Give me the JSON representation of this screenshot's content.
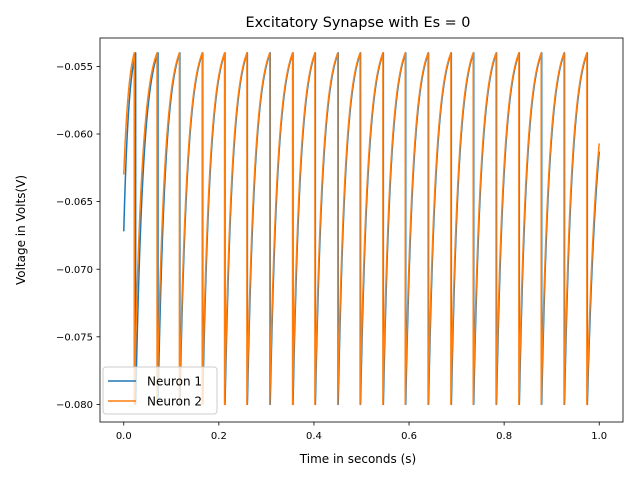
{
  "chart_data": {
    "type": "line",
    "title": "Excitatory Synapse with Es = 0",
    "xlabel": "Time in seconds (s)",
    "ylabel": "Voltage in Volts(V)",
    "xlim": [
      -0.05,
      1.05
    ],
    "ylim": [
      -0.0813,
      -0.0529
    ],
    "x_ticks": [
      0.0,
      0.2,
      0.4,
      0.6,
      0.8,
      1.0
    ],
    "x_tick_labels": [
      "0.0",
      "0.2",
      "0.4",
      "0.6",
      "0.8",
      "1.0"
    ],
    "y_ticks": [
      -0.08,
      -0.075,
      -0.07,
      -0.065,
      -0.06,
      -0.055
    ],
    "y_tick_labels": [
      "−0.080",
      "−0.075",
      "−0.070",
      "−0.065",
      "−0.060",
      "−0.055"
    ],
    "grid": false,
    "legend": {
      "position": "lower-left",
      "entries": [
        "Neuron 1",
        "Neuron 2"
      ]
    },
    "series": [
      {
        "name": "Neuron 1",
        "color": "#1f77b4",
        "v_start": -0.0672,
        "v_threshold": -0.054,
        "v_reset": -0.08,
        "v_end": -0.0613,
        "spike_times": [
          0.025,
          0.072,
          0.118,
          0.166,
          0.213,
          0.26,
          0.308,
          0.356,
          0.403,
          0.451,
          0.498,
          0.546,
          0.593,
          0.641,
          0.689,
          0.736,
          0.784,
          0.832,
          0.879,
          0.927,
          0.975
        ]
      },
      {
        "name": "Neuron 2",
        "color": "#ff7f0e",
        "v_start": -0.063,
        "v_threshold": -0.054,
        "v_reset": -0.08,
        "v_end": -0.0607,
        "spike_times": [
          0.022,
          0.07,
          0.117,
          0.165,
          0.212,
          0.259,
          0.307,
          0.355,
          0.402,
          0.45,
          0.497,
          0.545,
          0.592,
          0.64,
          0.688,
          0.735,
          0.783,
          0.831,
          0.878,
          0.926,
          0.974
        ]
      }
    ]
  }
}
